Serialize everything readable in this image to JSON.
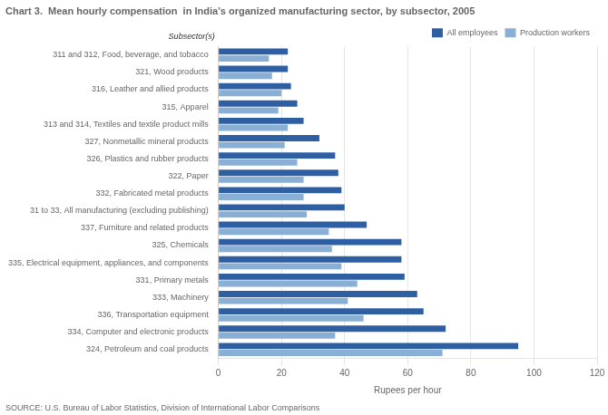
{
  "chart_data": {
    "type": "bar",
    "orientation": "horizontal",
    "title": "Chart 3.  Mean hourly compensation  in India’s organized manufacturing sector, by subsector, 2005",
    "annotations": [
      "Subsector(s)",
      "SOURCE: U.S. Bureau of Labor Statistics, Division of International Labor Comparisons"
    ],
    "xlabel": "Rupees per hour",
    "categories": [
      "311 and 312, Food, beverage, and tobacco",
      "321, Wood products",
      "316, Leather and allied products",
      "315, Apparel",
      "313 and 314, Textiles and textile product mills",
      "327, Nonmetallic mineral products",
      "326, Plastics and rubber products",
      "322, Paper",
      "332, Fabricated metal products",
      "31 to 33, All manufacturing (excluding publishing)",
      "337, Furniture and related products",
      "325, Chemicals",
      "335, Electrical equipment, appliances, and components",
      "331, Primary metals",
      "333, Machinery",
      "336, Transportation equipment",
      "334, Computer and electronic products",
      "324, Petroleum and coal products"
    ],
    "series": [
      {
        "name": "All employees",
        "color": "#2E5FA3",
        "values": [
          22,
          22,
          23,
          25,
          27,
          32,
          37,
          38,
          39,
          40,
          47,
          58,
          58,
          59,
          63,
          65,
          72,
          95
        ]
      },
      {
        "name": "Production workers",
        "color": "#8AAFD4",
        "values": [
          16,
          17,
          20,
          19,
          22,
          21,
          25,
          27,
          27,
          28,
          35,
          36,
          39,
          44,
          41,
          46,
          37,
          71
        ]
      }
    ],
    "xlim": [
      0,
      120
    ],
    "xticks": [
      0,
      20,
      40,
      60,
      80,
      100,
      120
    ],
    "grid": true,
    "legend": "upper right"
  }
}
